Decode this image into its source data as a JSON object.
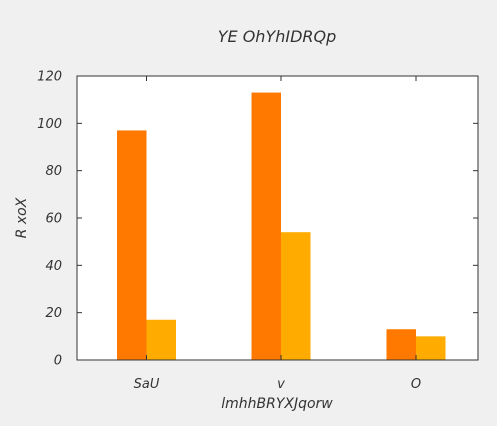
{
  "chart_data": {
    "type": "bar",
    "title": "YE OhYhIDRQp",
    "xlabel": "lmhhBRYXJqorw",
    "ylabel": "R xoX",
    "categories": [
      "SaU",
      "v",
      "O"
    ],
    "series": [
      {
        "values": [
          97,
          113,
          13
        ],
        "color": "#ff7800"
      },
      {
        "values": [
          17,
          54,
          10
        ],
        "color": "#ffab00"
      }
    ],
    "ylim": [
      0,
      120
    ],
    "yticks": [
      0,
      20,
      40,
      60,
      80,
      100,
      120
    ],
    "ytick_labels": [
      "0",
      "20",
      "40",
      "60",
      "80",
      "100",
      "120"
    ],
    "grid": false,
    "legend": "none"
  },
  "colors": {
    "background": "#f0f0f0",
    "plot_background": "#ffffff",
    "axis": "#333333"
  }
}
